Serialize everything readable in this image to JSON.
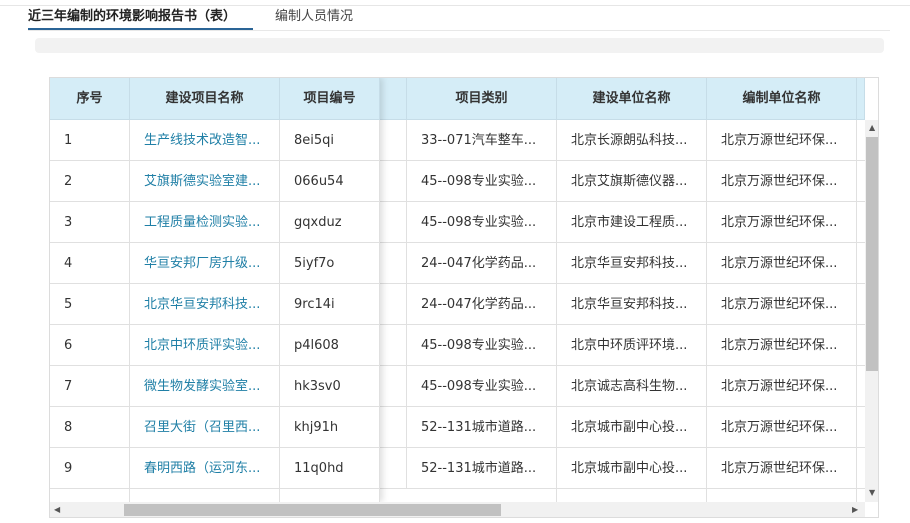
{
  "tabs": [
    {
      "label": "近三年编制的环境影响报告书（表）",
      "active": true
    },
    {
      "label": "编制人员情况",
      "active": false
    }
  ],
  "columns": [
    "序号",
    "建设项目名称",
    "项目编号",
    "项目类别",
    "建设单位名称",
    "编制单位名称"
  ],
  "rows": [
    [
      "1",
      "生产线技术改造智...",
      "8ei5qi",
      "33--071汽车整车...",
      "北京长源朗弘科技...",
      "北京万源世纪环保..."
    ],
    [
      "2",
      "艾旗斯德实验室建...",
      "066u54",
      "45--098专业实验...",
      "北京艾旗斯德仪器...",
      "北京万源世纪环保..."
    ],
    [
      "3",
      "工程质量检测实验...",
      "gqxduz",
      "45--098专业实验...",
      "北京市建设工程质...",
      "北京万源世纪环保..."
    ],
    [
      "4",
      "华亘安邦厂房升级...",
      "5iyf7o",
      "24--047化学药品...",
      "北京华亘安邦科技...",
      "北京万源世纪环保..."
    ],
    [
      "5",
      "北京华亘安邦科技...",
      "9rc14i",
      "24--047化学药品...",
      "北京华亘安邦科技...",
      "北京万源世纪环保..."
    ],
    [
      "6",
      "北京中环质评实验...",
      "p4l608",
      "45--098专业实验...",
      "北京中环质评环境...",
      "北京万源世纪环保..."
    ],
    [
      "7",
      "微生物发酵实验室...",
      "hk3sv0",
      "45--098专业实验...",
      "北京诚志高科生物...",
      "北京万源世纪环保..."
    ],
    [
      "8",
      "召里大街（召里西...",
      "khj91h",
      "52--131城市道路...",
      "北京城市副中心投...",
      "北京万源世纪环保..."
    ],
    [
      "9",
      "春明西路（运河东...",
      "11q0hd",
      "52--131城市道路...",
      "北京城市副中心投...",
      "北京万源世纪环保..."
    ]
  ],
  "colors": {
    "header_bg": "#d5edf7",
    "link": "#1f7fa6",
    "tab_underline": "#2a6496"
  }
}
